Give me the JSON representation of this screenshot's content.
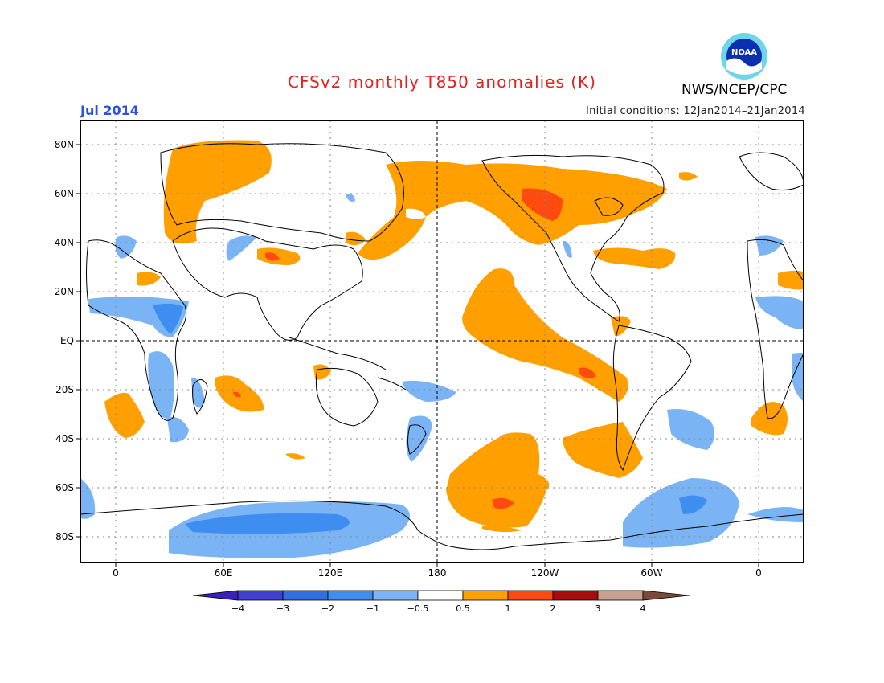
{
  "header": {
    "title": "CFSv2 monthly T850 anomalies (K)",
    "month": "Jul 2014",
    "initial_conditions": "Initial conditions: 12Jan2014–21Jan2014",
    "agency": "NWS/NCEP/CPC",
    "logo_text": "NOAA"
  },
  "axes": {
    "y_labels": [
      "80N",
      "60N",
      "40N",
      "20N",
      "EQ",
      "20S",
      "40S",
      "60S",
      "80S"
    ],
    "x_labels": [
      "0",
      "60E",
      "120E",
      "180",
      "120W",
      "60W",
      "0"
    ]
  },
  "colorbar": {
    "labels": [
      "−4",
      "−3",
      "−2",
      "−1",
      "−0.5",
      "0.5",
      "1",
      "2",
      "3",
      "4"
    ],
    "colors": [
      "#3a1fbf",
      "#3f3fd0",
      "#2f6fe0",
      "#3d8ef0",
      "#7ab4f5",
      "#ffffff",
      "#ffa000",
      "#ff4a10",
      "#a60c0c",
      "#c8a090",
      "#7a4a3a"
    ]
  },
  "legend_colors": {
    "warm_1": "#ffa000",
    "warm_2": "#ff4a10",
    "cool_1": "#7ab4f5",
    "cool_2": "#3d8ef0"
  }
}
